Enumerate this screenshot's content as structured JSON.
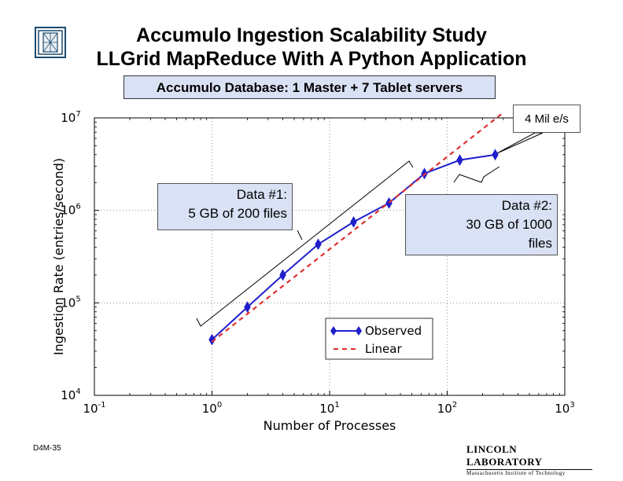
{
  "slide": {
    "title_line1": "Accumulo Ingestion Scalability Study",
    "title_line2": "LLGrid MapReduce With A Python Application",
    "subtitle": "Accumulo Database: 1 Master + 7 Tablet servers",
    "footer_code": "D4M-35",
    "footer_org_line1": "LINCOLN LABORATORY",
    "footer_org_line2": "Massachusetts Institute of Technology"
  },
  "callouts": {
    "data1_line1": "Data #1:",
    "data1_line2": "5 GB of 200 files",
    "data2_line1": "Data #2:",
    "data2_line2": "30 GB of 1000",
    "data2_line3": "files",
    "peak": "4 Mil e/s"
  },
  "chart_data": {
    "type": "line",
    "xscale": "log",
    "yscale": "log",
    "xlim": [
      0.1,
      1000
    ],
    "ylim": [
      10000,
      10000000
    ],
    "xlabel": "Number of Processes",
    "ylabel": "Ingestion Rate (entries/second)",
    "x_ticks": [
      {
        "base": "10",
        "exp": "-1",
        "value": 0.1
      },
      {
        "base": "10",
        "exp": "0",
        "value": 1
      },
      {
        "base": "10",
        "exp": "1",
        "value": 10
      },
      {
        "base": "10",
        "exp": "2",
        "value": 100
      },
      {
        "base": "10",
        "exp": "3",
        "value": 1000
      }
    ],
    "y_ticks": [
      {
        "base": "10",
        "exp": "4",
        "value": 10000
      },
      {
        "base": "10",
        "exp": "5",
        "value": 100000
      },
      {
        "base": "10",
        "exp": "6",
        "value": 1000000
      },
      {
        "base": "10",
        "exp": "7",
        "value": 10000000
      }
    ],
    "grid": true,
    "legend_position": "lower-right",
    "series": [
      {
        "name": "Observed",
        "color": "#1f1fcc",
        "style": "solid",
        "marker": "diamond",
        "x": [
          1,
          2,
          4,
          8,
          16,
          32,
          64,
          128,
          256
        ],
        "y": [
          40000,
          90000,
          200000,
          430000,
          750000,
          1200000,
          2500000,
          3500000,
          4000000
        ]
      },
      {
        "name": "Linear",
        "color": "#e03030",
        "style": "dashed",
        "x": [
          1,
          300
        ],
        "y": [
          38000,
          11400000
        ]
      }
    ]
  }
}
